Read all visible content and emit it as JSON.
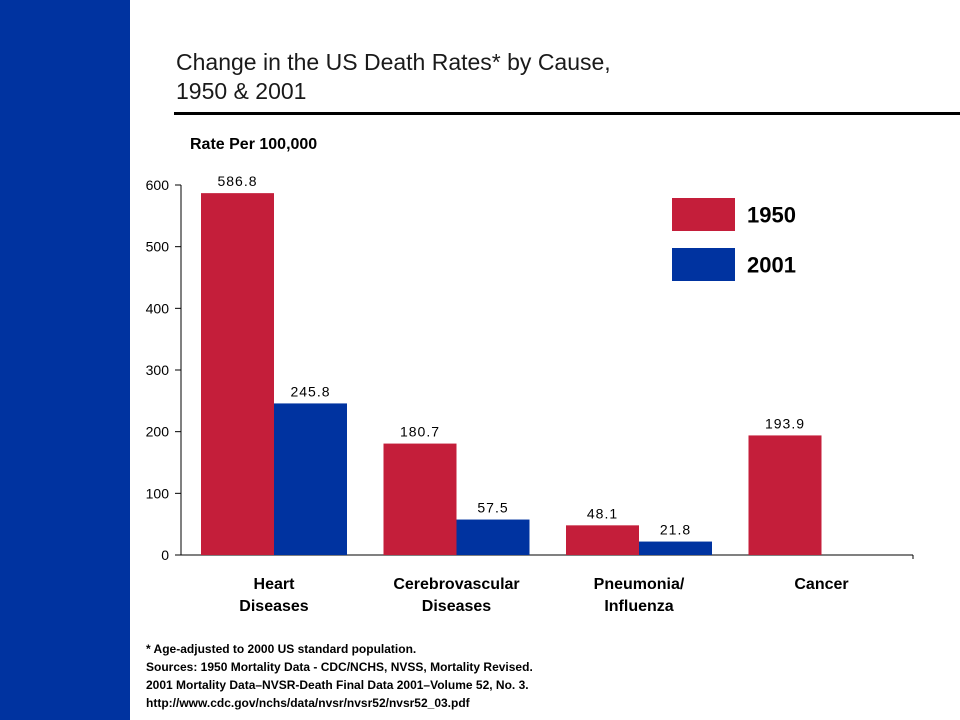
{
  "colors": {
    "sidebar": "#0033a0",
    "series_1950": "#c41e3a",
    "series_2001": "#0033a0"
  },
  "title_lines": [
    "Change in the US Death Rates* by Cause,",
    "1950 & 2001"
  ],
  "footnotes": [
    "* Age-adjusted to 2000 US standard population.",
    "Sources: 1950 Mortality Data - CDC/NCHS, NVSS, Mortality Revised.",
    "2001 Mortality Data–NVSR-Death Final Data 2001–Volume 52, No. 3.",
    "http://www.cdc.gov/nchs/data/nvsr/nvsr52/nvsr52_03.pdf"
  ],
  "chart_data": {
    "type": "bar",
    "title": "Change in the US Death Rates* by Cause, 1950 & 2001",
    "ylabel": "Rate Per 100,000",
    "xlabel": "",
    "ylim": [
      0,
      600
    ],
    "yticks": [
      0,
      100,
      200,
      300,
      400,
      500,
      600
    ],
    "grid": false,
    "legend_position": "top-right",
    "categories": [
      [
        "Heart",
        "Diseases"
      ],
      [
        "Cerebrovascular",
        "Diseases"
      ],
      [
        "Pneumonia/",
        "Influenza"
      ],
      [
        "Cancer"
      ]
    ],
    "series": [
      {
        "name": "1950",
        "color": "#c41e3a",
        "values": [
          586.8,
          180.7,
          48.1,
          193.9
        ],
        "labels": [
          "586.8",
          "180.7",
          "48.1",
          "193.9"
        ]
      },
      {
        "name": "2001",
        "color": "#0033a0",
        "values": [
          245.8,
          57.5,
          21.8,
          null
        ],
        "labels": [
          "245.8",
          "57.5",
          "21.8",
          null
        ]
      }
    ]
  }
}
